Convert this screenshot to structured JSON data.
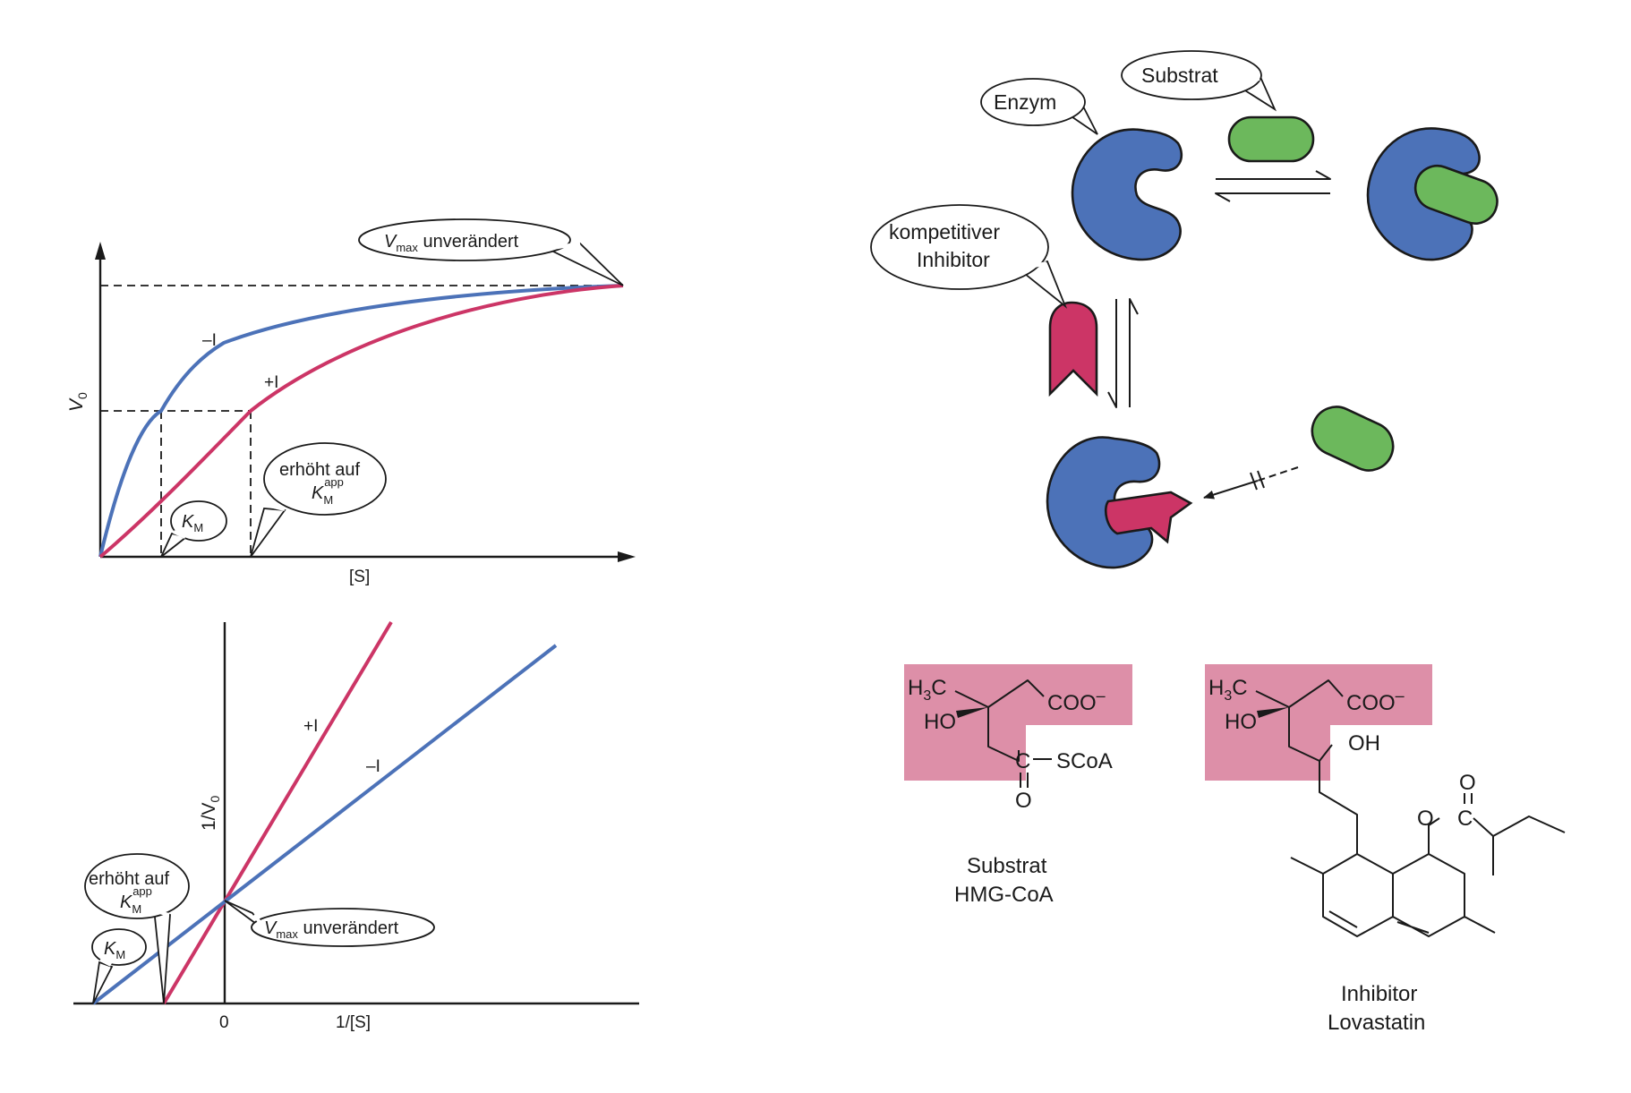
{
  "colors": {
    "blue": "#4c72b8",
    "red": "#cc3566",
    "green": "#6cb85c",
    "highlight": "#dd8fa8",
    "ink": "#1a1a1a"
  },
  "michaelis_plot": {
    "y_label": "V",
    "y_label_sub": "0",
    "x_label": "[S]",
    "curve_minus_label": "–I",
    "curve_plus_label": "+I",
    "vmax_bubble": {
      "main": "V",
      "sub": "max",
      "text": " unverändert"
    },
    "km_bubble": {
      "main": "K",
      "sub": "M"
    },
    "kmapp_bubble": {
      "line1": "erhöht auf",
      "main": "K",
      "sub": "M",
      "sup": "app"
    }
  },
  "lineweaver_plot": {
    "y_label": "1/V",
    "y_label_sub": "0",
    "x_label": "1/[S]",
    "origin_label": "0",
    "line_plus_label": "+I",
    "line_minus_label": "–I",
    "vmax_bubble": {
      "main": "V",
      "sub": "max",
      "text": " unverändert"
    },
    "kmapp_bubble": {
      "line1": "erhöht auf",
      "main": "K",
      "sub": "M",
      "sup": "app"
    },
    "km_bubble": {
      "main": "K",
      "sub": "M"
    }
  },
  "scheme": {
    "enzyme_label": "Enzym",
    "substrate_label": "Substrat",
    "inhibitor_label_line1": "kompetitiver",
    "inhibitor_label_line2": "Inhibitor"
  },
  "structures": {
    "hmg": {
      "h3c_main": "H",
      "h3c_sub": "3",
      "h3c_tail": "C",
      "ho": "HO",
      "coo": "COO",
      "coo_charge": "–",
      "c": "C",
      "scoa": "SCoA",
      "o": "O",
      "caption_line1": "Substrat",
      "caption_line2": "HMG-CoA"
    },
    "lovastatin": {
      "h3c_main": "H",
      "h3c_sub": "3",
      "h3c_tail": "C",
      "ho": "HO",
      "coo": "COO",
      "coo_charge": "–",
      "oh": "OH",
      "ester_o": "O",
      "ester_c": "C",
      "carbonyl_o": "O",
      "caption_line1": "Inhibitor",
      "caption_line2": "Lovastatin"
    }
  }
}
